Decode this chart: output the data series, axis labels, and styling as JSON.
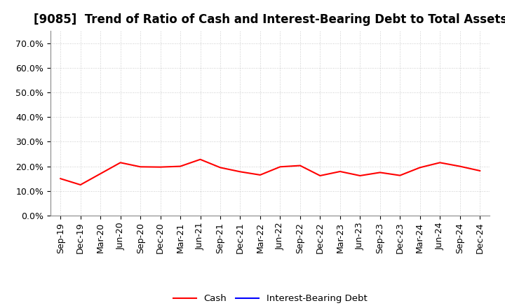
{
  "title": "[9085]  Trend of Ratio of Cash and Interest-Bearing Debt to Total Assets",
  "x_labels": [
    "Sep-19",
    "Dec-19",
    "Mar-20",
    "Jun-20",
    "Sep-20",
    "Dec-20",
    "Mar-21",
    "Jun-21",
    "Sep-21",
    "Dec-21",
    "Mar-22",
    "Jun-22",
    "Sep-22",
    "Dec-22",
    "Mar-23",
    "Jun-23",
    "Sep-23",
    "Dec-23",
    "Mar-24",
    "Jun-24",
    "Sep-24",
    "Dec-24"
  ],
  "cash_values": [
    0.15,
    0.125,
    0.17,
    0.215,
    0.198,
    0.197,
    0.2,
    0.228,
    0.195,
    0.178,
    0.165,
    0.198,
    0.203,
    0.162,
    0.179,
    0.162,
    0.175,
    0.163,
    0.195,
    0.215,
    0.2,
    0.182
  ],
  "cash_color": "#FF0000",
  "interest_debt_color": "#0000FF",
  "ylim": [
    0.0,
    0.75
  ],
  "yticks": [
    0.0,
    0.1,
    0.2,
    0.3,
    0.4,
    0.5,
    0.6,
    0.7
  ],
  "background_color": "#FFFFFF",
  "plot_bg_color": "#FFFFFF",
  "grid_color": "#AAAAAA",
  "title_fontsize": 12,
  "tick_fontsize": 9,
  "legend_labels": [
    "Cash",
    "Interest-Bearing Debt"
  ]
}
